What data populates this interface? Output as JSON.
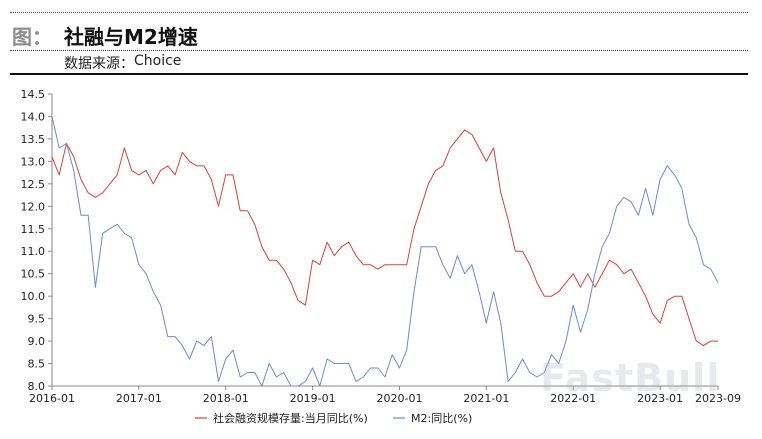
{
  "header": {
    "figure_label": "图：",
    "title": "社融与M2增速",
    "source_label": "数据来源：",
    "source_value": "Choice"
  },
  "watermark": "FastBull",
  "chart_data": {
    "type": "line",
    "title": "社融与M2增速",
    "xlabel": "",
    "ylabel": "",
    "ylim": [
      8.0,
      14.5
    ],
    "yticks": [
      "8.0",
      "8.5",
      "9.0",
      "9.5",
      "10.0",
      "10.5",
      "11.0",
      "11.5",
      "12.0",
      "12.5",
      "13.0",
      "13.5",
      "14.0",
      "14.5"
    ],
    "xticks": [
      "2016-01",
      "2017-01",
      "2018-01",
      "2019-01",
      "2020-01",
      "2021-01",
      "2022-01",
      "2023-01",
      "2023-09"
    ],
    "grid": false,
    "legend_position": "bottom",
    "x_start": "2016-01",
    "x_end": "2023-09",
    "series": [
      {
        "name": "社会融资规模存量:当月同比(%)",
        "color": "#d9413a",
        "values": [
          13.1,
          12.7,
          13.4,
          13.1,
          12.6,
          12.3,
          12.2,
          12.3,
          12.5,
          12.7,
          13.3,
          12.8,
          12.7,
          12.8,
          12.5,
          12.8,
          12.9,
          12.7,
          13.2,
          13.0,
          12.9,
          12.9,
          12.6,
          12.0,
          12.7,
          12.7,
          11.9,
          11.9,
          11.6,
          11.1,
          10.8,
          10.8,
          10.6,
          10.3,
          9.9,
          9.8,
          10.8,
          10.7,
          11.2,
          10.9,
          11.1,
          11.2,
          10.9,
          10.7,
          10.7,
          10.6,
          10.7,
          10.7,
          10.7,
          10.7,
          11.5,
          12.0,
          12.5,
          12.8,
          12.9,
          13.3,
          13.5,
          13.7,
          13.6,
          13.3,
          13.0,
          13.3,
          12.3,
          11.7,
          11.0,
          11.0,
          10.7,
          10.3,
          10.0,
          10.0,
          10.1,
          10.3,
          10.5,
          10.2,
          10.5,
          10.2,
          10.5,
          10.8,
          10.7,
          10.5,
          10.6,
          10.3,
          10.0,
          9.6,
          9.4,
          9.9,
          10.0,
          10.0,
          9.5,
          9.0,
          8.9,
          9.0,
          9.0
        ]
      },
      {
        "name": "M2:同比(%)",
        "color": "#6b8cc7",
        "values": [
          14.0,
          13.3,
          13.4,
          12.8,
          11.8,
          11.8,
          10.2,
          11.4,
          11.5,
          11.6,
          11.4,
          11.3,
          10.7,
          10.5,
          10.1,
          9.8,
          9.1,
          9.1,
          8.9,
          8.6,
          9.0,
          8.9,
          9.1,
          8.1,
          8.6,
          8.8,
          8.2,
          8.3,
          8.3,
          8.0,
          8.5,
          8.2,
          8.3,
          8.0,
          8.0,
          8.1,
          8.4,
          8.0,
          8.6,
          8.5,
          8.5,
          8.5,
          8.1,
          8.2,
          8.4,
          8.4,
          8.2,
          8.7,
          8.4,
          8.8,
          10.1,
          11.1,
          11.1,
          11.1,
          10.7,
          10.4,
          10.9,
          10.5,
          10.7,
          10.1,
          9.4,
          10.1,
          9.4,
          8.1,
          8.3,
          8.6,
          8.3,
          8.2,
          8.3,
          8.7,
          8.5,
          9.0,
          9.8,
          9.2,
          9.7,
          10.5,
          11.1,
          11.4,
          12.0,
          12.2,
          12.1,
          11.8,
          12.4,
          11.8,
          12.6,
          12.9,
          12.7,
          12.4,
          11.6,
          11.3,
          10.7,
          10.6,
          10.3
        ]
      }
    ]
  }
}
